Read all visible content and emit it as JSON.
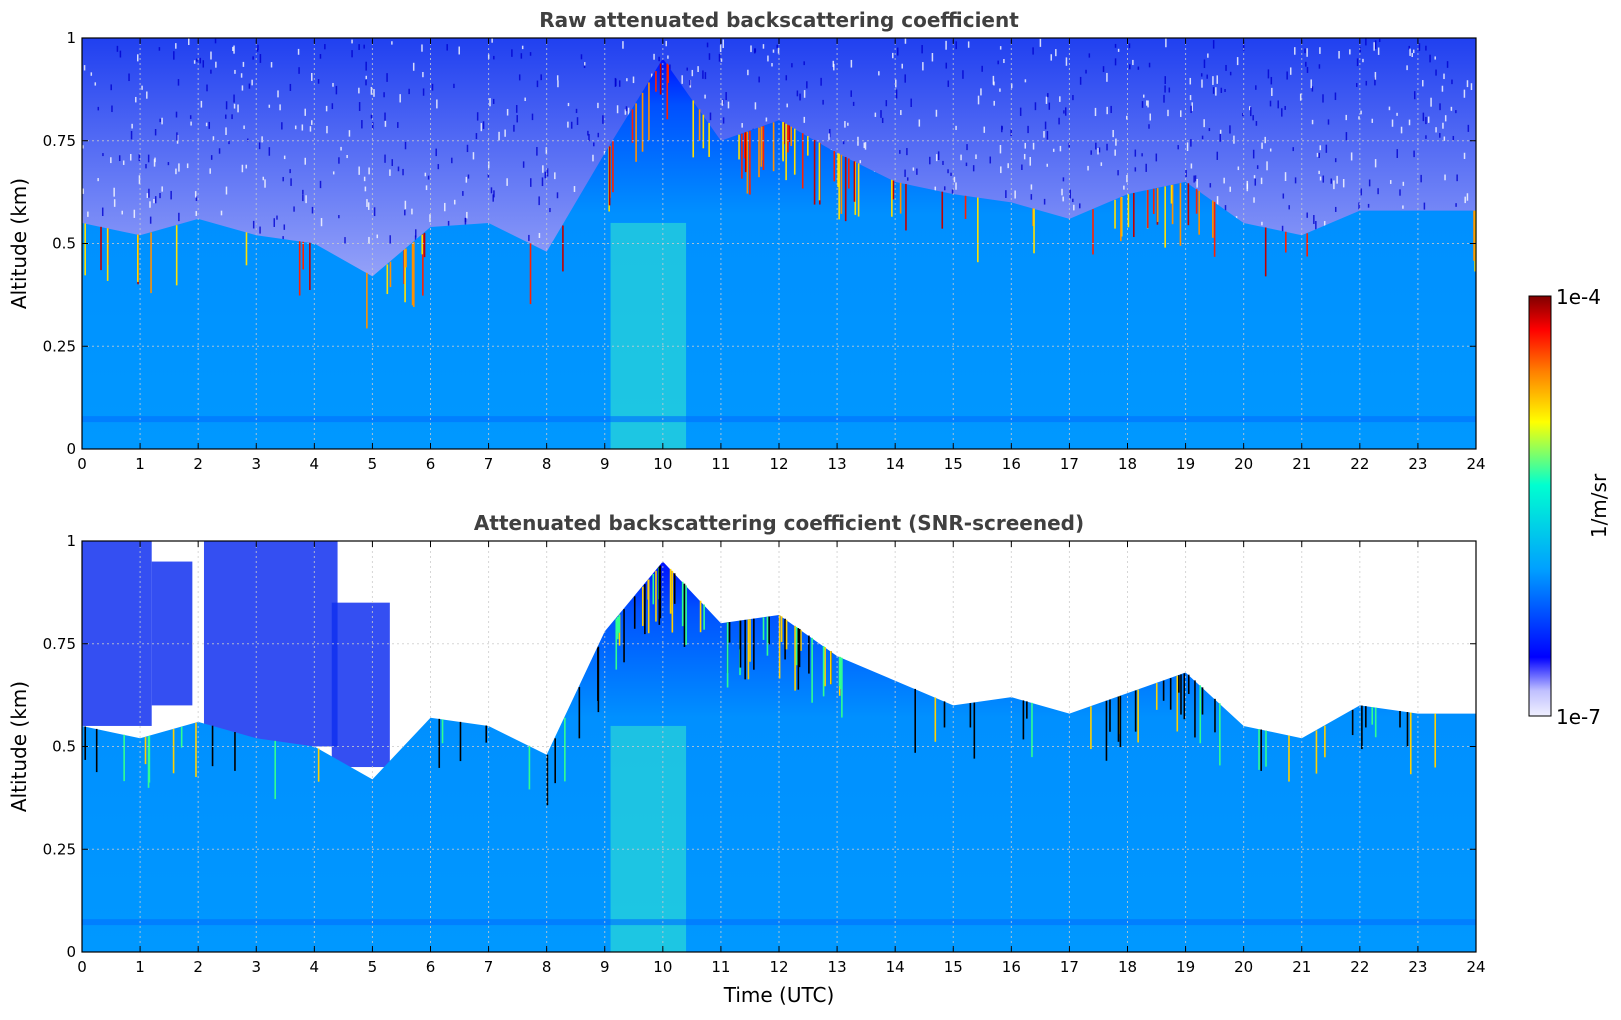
{
  "chart_data": [
    {
      "type": "heatmap",
      "title": "Raw attenuated backscattering coefficient",
      "xlabel": "",
      "ylabel": "Altitude (km)",
      "xlim": [
        0,
        24
      ],
      "ylim": [
        0,
        1
      ],
      "x_ticks": [
        "0",
        "1",
        "2",
        "3",
        "4",
        "5",
        "6",
        "7",
        "8",
        "9",
        "10",
        "11",
        "12",
        "13",
        "14",
        "15",
        "16",
        "17",
        "18",
        "19",
        "20",
        "21",
        "22",
        "23",
        "24"
      ],
      "y_ticks": [
        "0",
        "0.25",
        "0.5",
        "0.75",
        "1"
      ],
      "grid": true,
      "variant": "raw",
      "boundary_layer_top_km": [
        {
          "t": 0,
          "z": 0.55
        },
        {
          "t": 1,
          "z": 0.52
        },
        {
          "t": 2,
          "z": 0.56
        },
        {
          "t": 3,
          "z": 0.52
        },
        {
          "t": 4,
          "z": 0.5
        },
        {
          "t": 5,
          "z": 0.42
        },
        {
          "t": 6,
          "z": 0.54
        },
        {
          "t": 7,
          "z": 0.55
        },
        {
          "t": 8,
          "z": 0.48
        },
        {
          "t": 9,
          "z": 0.72
        },
        {
          "t": 10,
          "z": 0.95
        },
        {
          "t": 11,
          "z": 0.75
        },
        {
          "t": 12,
          "z": 0.8
        },
        {
          "t": 13,
          "z": 0.72
        },
        {
          "t": 14,
          "z": 0.65
        },
        {
          "t": 15,
          "z": 0.62
        },
        {
          "t": 16,
          "z": 0.6
        },
        {
          "t": 17,
          "z": 0.56
        },
        {
          "t": 18,
          "z": 0.62
        },
        {
          "t": 19,
          "z": 0.65
        },
        {
          "t": 20,
          "z": 0.55
        },
        {
          "t": 21,
          "z": 0.52
        },
        {
          "t": 22,
          "z": 0.58
        },
        {
          "t": 23,
          "z": 0.58
        },
        {
          "t": 24,
          "z": 0.58
        }
      ]
    },
    {
      "type": "heatmap",
      "title": "Attenuated backscattering coefficient (SNR-screened)",
      "xlabel": "Time (UTC)",
      "ylabel": "Altitude (km)",
      "xlim": [
        0,
        24
      ],
      "ylim": [
        0,
        1
      ],
      "x_ticks": [
        "0",
        "1",
        "2",
        "3",
        "4",
        "5",
        "6",
        "7",
        "8",
        "9",
        "10",
        "11",
        "12",
        "13",
        "14",
        "15",
        "16",
        "17",
        "18",
        "19",
        "20",
        "21",
        "22",
        "23",
        "24"
      ],
      "y_ticks": [
        "0",
        "0.25",
        "0.5",
        "0.75",
        "1"
      ],
      "grid": true,
      "variant": "screened",
      "boundary_layer_top_km": [
        {
          "t": 0,
          "z": 0.55
        },
        {
          "t": 1,
          "z": 0.52
        },
        {
          "t": 2,
          "z": 0.56
        },
        {
          "t": 3,
          "z": 0.52
        },
        {
          "t": 4,
          "z": 0.5
        },
        {
          "t": 5,
          "z": 0.42
        },
        {
          "t": 6,
          "z": 0.57
        },
        {
          "t": 7,
          "z": 0.55
        },
        {
          "t": 8,
          "z": 0.48
        },
        {
          "t": 9,
          "z": 0.78
        },
        {
          "t": 10,
          "z": 0.95
        },
        {
          "t": 11,
          "z": 0.8
        },
        {
          "t": 12,
          "z": 0.82
        },
        {
          "t": 13,
          "z": 0.72
        },
        {
          "t": 14,
          "z": 0.66
        },
        {
          "t": 15,
          "z": 0.6
        },
        {
          "t": 16,
          "z": 0.62
        },
        {
          "t": 17,
          "z": 0.58
        },
        {
          "t": 18,
          "z": 0.63
        },
        {
          "t": 19,
          "z": 0.68
        },
        {
          "t": 20,
          "z": 0.55
        },
        {
          "t": 21,
          "z": 0.52
        },
        {
          "t": 22,
          "z": 0.6
        },
        {
          "t": 23,
          "z": 0.58
        },
        {
          "t": 24,
          "z": 0.58
        }
      ]
    }
  ],
  "colorbar": {
    "label": "1/m/sr",
    "min_label": "1e-7",
    "max_label": "1e-4",
    "colors": [
      "#f0f0ff",
      "#0000ff",
      "#00aaff",
      "#00ffd0",
      "#ffff00",
      "#ff8000",
      "#ff0000",
      "#800000"
    ]
  }
}
